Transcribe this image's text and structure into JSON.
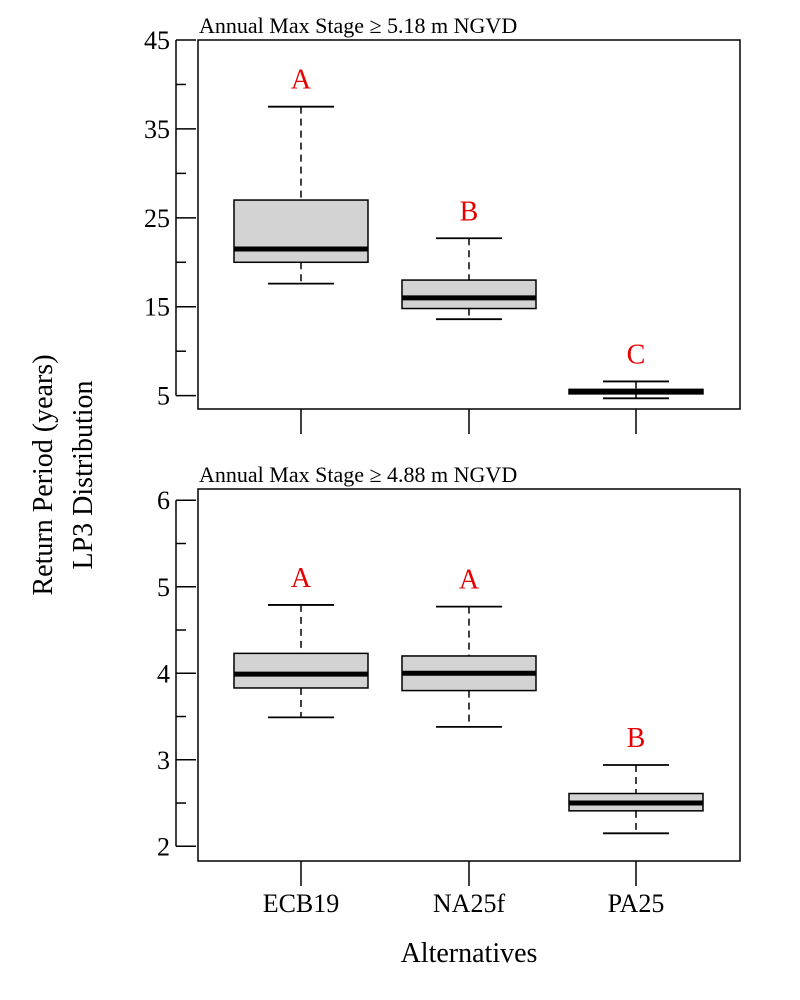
{
  "chart_data": {
    "type": "boxplot",
    "xlabel": "Alternatives",
    "ylabel_line1": "Return Period (years)",
    "ylabel_line2": "LP3 Distribution",
    "categories": [
      "ECB19",
      "NA25f",
      "PA25"
    ],
    "box_fill": "#d3d3d3",
    "letter_color": "#e60000",
    "panels": [
      {
        "title": "Annual Max Stage ≥ 5.18 m NGVD",
        "ylim": [
          3.5,
          45
        ],
        "yticks": [
          5,
          10,
          15,
          20,
          25,
          30,
          35,
          40,
          45
        ],
        "ytick_labels": [
          "5",
          "",
          "15",
          "",
          "25",
          "",
          "35",
          "",
          "45"
        ],
        "boxes": [
          {
            "category": "ECB19",
            "whisker_low": 17.6,
            "q1": 20.0,
            "median": 21.5,
            "q3": 27.0,
            "whisker_high": 37.5,
            "letter": "A"
          },
          {
            "category": "NA25f",
            "whisker_low": 13.6,
            "q1": 14.8,
            "median": 16.0,
            "q3": 18.0,
            "whisker_high": 22.7,
            "letter": "B"
          },
          {
            "category": "PA25",
            "whisker_low": 4.7,
            "q1": 5.2,
            "median": 5.5,
            "q3": 5.7,
            "whisker_high": 6.6,
            "letter": "C"
          }
        ]
      },
      {
        "title": "Annual Max Stage ≥ 4.88 m NGVD",
        "ylim": [
          1.83,
          6.13
        ],
        "yticks": [
          2,
          2.5,
          3,
          3.5,
          4,
          4.5,
          5,
          5.5,
          6
        ],
        "ytick_labels": [
          "2",
          "",
          "3",
          "",
          "4",
          "",
          "5",
          "",
          "6"
        ],
        "boxes": [
          {
            "category": "ECB19",
            "whisker_low": 3.49,
            "q1": 3.83,
            "median": 3.99,
            "q3": 4.23,
            "whisker_high": 4.79,
            "letter": "A"
          },
          {
            "category": "NA25f",
            "whisker_low": 3.38,
            "q1": 3.8,
            "median": 4.0,
            "q3": 4.2,
            "whisker_high": 4.77,
            "letter": "A"
          },
          {
            "category": "PA25",
            "whisker_low": 2.15,
            "q1": 2.41,
            "median": 2.5,
            "q3": 2.61,
            "whisker_high": 2.94,
            "letter": "B"
          }
        ]
      }
    ]
  }
}
